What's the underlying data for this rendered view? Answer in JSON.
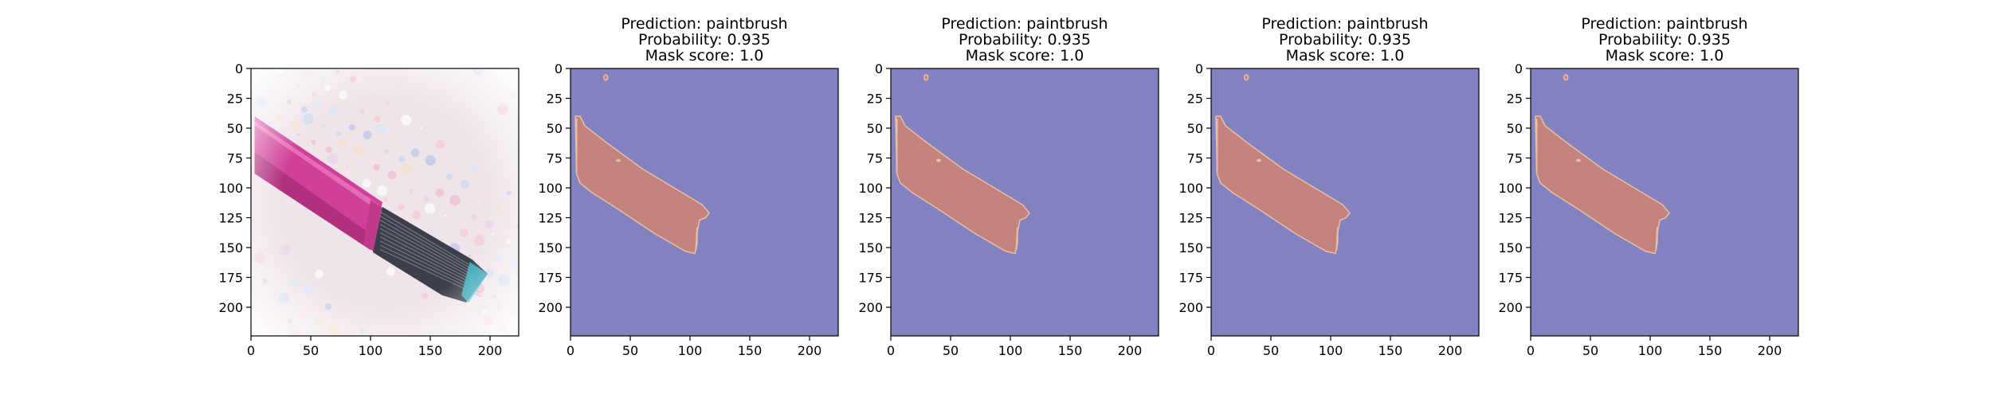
{
  "chart_data": [
    {
      "type": "image",
      "title": [],
      "x_ticks": [
        0,
        50,
        100,
        150,
        200
      ],
      "y_ticks": [
        0,
        25,
        50,
        75,
        100,
        125,
        150,
        175,
        200
      ],
      "xlim": [
        0,
        224
      ],
      "ylim": [
        224,
        0
      ],
      "content": "paintbrush-photo"
    },
    {
      "type": "heatmap",
      "title": [
        "Prediction: paintbrush",
        "Probability: 0.935",
        "Mask score: 1.0"
      ],
      "prediction": "paintbrush",
      "probability": 0.935,
      "mask_score": 1.0,
      "x_ticks": [
        0,
        50,
        100,
        150,
        200
      ],
      "y_ticks": [
        0,
        25,
        50,
        75,
        100,
        125,
        150,
        175,
        200
      ],
      "xlim": [
        0,
        224
      ],
      "ylim": [
        224,
        0
      ],
      "colors": {
        "background": "#8282c0",
        "mask": "#c4827f",
        "edge": "#e8c0a0"
      }
    },
    {
      "type": "heatmap",
      "title": [
        "Prediction: paintbrush",
        "Probability: 0.935",
        "Mask score: 1.0"
      ],
      "prediction": "paintbrush",
      "probability": 0.935,
      "mask_score": 1.0,
      "x_ticks": [
        0,
        50,
        100,
        150,
        200
      ],
      "y_ticks": [
        0,
        25,
        50,
        75,
        100,
        125,
        150,
        175,
        200
      ],
      "xlim": [
        0,
        224
      ],
      "ylim": [
        224,
        0
      ],
      "colors": {
        "background": "#8282c0",
        "mask": "#c4827f",
        "edge": "#e8c0a0"
      }
    },
    {
      "type": "heatmap",
      "title": [
        "Prediction: paintbrush",
        "Probability: 0.935",
        "Mask score: 1.0"
      ],
      "prediction": "paintbrush",
      "probability": 0.935,
      "mask_score": 1.0,
      "x_ticks": [
        0,
        50,
        100,
        150,
        200
      ],
      "y_ticks": [
        0,
        25,
        50,
        75,
        100,
        125,
        150,
        175,
        200
      ],
      "xlim": [
        0,
        224
      ],
      "ylim": [
        224,
        0
      ],
      "colors": {
        "background": "#8282c0",
        "mask": "#c4827f",
        "edge": "#e8c0a0"
      }
    },
    {
      "type": "heatmap",
      "title": [
        "Prediction: paintbrush",
        "Probability: 0.935",
        "Mask score: 1.0"
      ],
      "prediction": "paintbrush",
      "probability": 0.935,
      "mask_score": 1.0,
      "x_ticks": [
        0,
        50,
        100,
        150,
        200
      ],
      "y_ticks": [
        0,
        25,
        50,
        75,
        100,
        125,
        150,
        175,
        200
      ],
      "xlim": [
        0,
        224
      ],
      "ylim": [
        224,
        0
      ],
      "colors": {
        "background": "#8282c0",
        "mask": "#c4827f",
        "edge": "#e8c0a0"
      }
    }
  ],
  "photo_colors": {
    "background": "#efe4ea",
    "handle": "#d0409a",
    "handle_shadow": "#b0307e",
    "ferrule": "#c03a8c",
    "bristles": "#3a3f4a",
    "bristle_tip": "#3cc0d0"
  }
}
